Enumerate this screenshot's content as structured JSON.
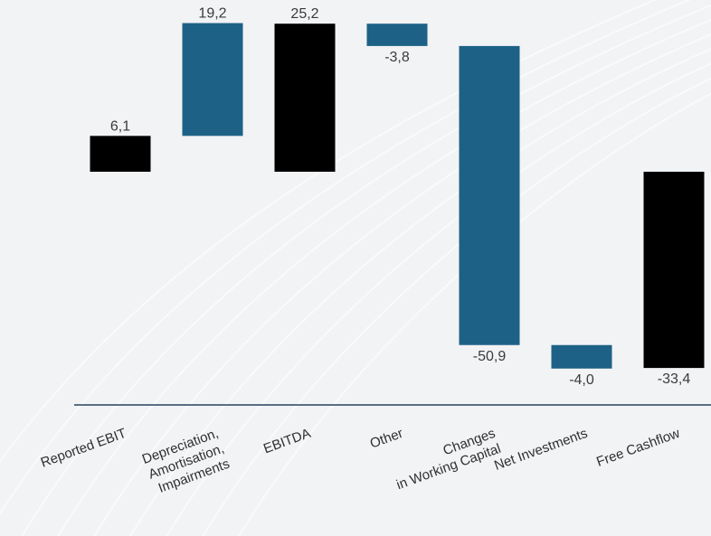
{
  "chart_data": {
    "type": "bar",
    "subtype": "waterfall",
    "title": "",
    "xlabel": "",
    "ylabel": "",
    "categories": [
      [
        "Reported EBIT"
      ],
      [
        "Depreciation,",
        "Amortisation,",
        "Impairments"
      ],
      [
        "EBITDA"
      ],
      [
        "Other"
      ],
      [
        "Changes",
        "in Working Capital"
      ],
      [
        "Net Investments"
      ],
      [
        "Free Cashflow"
      ]
    ],
    "values": [
      6.1,
      19.2,
      25.2,
      -3.8,
      -50.9,
      -4.0,
      -33.4
    ],
    "value_labels": [
      "6,1",
      "19,2",
      "25,2",
      "-3,8",
      "-50,9",
      "-4,0",
      "-33,4"
    ],
    "bar_kind": [
      "total",
      "delta",
      "total",
      "delta",
      "delta",
      "delta",
      "total"
    ],
    "colors": {
      "total": "#000000",
      "delta": "#1d6286",
      "axis": "#5a6e84",
      "label": "#3b3b3b",
      "background": "#f2f3f5"
    },
    "ylim": [
      -38,
      26
    ],
    "grid": false,
    "legend": "none"
  }
}
